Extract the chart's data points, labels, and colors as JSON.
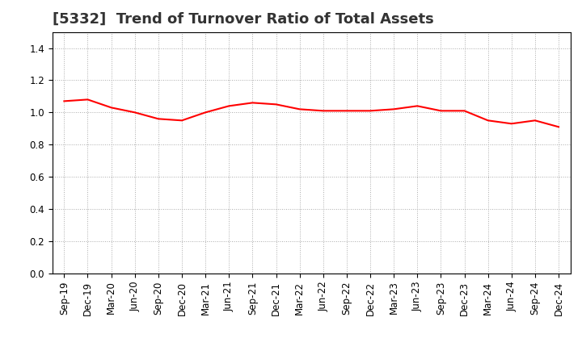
{
  "title": "[5332]  Trend of Turnover Ratio of Total Assets",
  "x_labels": [
    "Sep-19",
    "Dec-19",
    "Mar-20",
    "Jun-20",
    "Sep-20",
    "Dec-20",
    "Mar-21",
    "Jun-21",
    "Sep-21",
    "Dec-21",
    "Mar-22",
    "Jun-22",
    "Sep-22",
    "Dec-22",
    "Mar-23",
    "Jun-23",
    "Sep-23",
    "Dec-23",
    "Mar-24",
    "Jun-24",
    "Sep-24",
    "Dec-24"
  ],
  "values": [
    1.07,
    1.08,
    1.03,
    1.0,
    0.96,
    0.95,
    1.0,
    1.04,
    1.06,
    1.05,
    1.02,
    1.01,
    1.01,
    1.01,
    1.02,
    1.04,
    1.01,
    1.01,
    0.95,
    0.93,
    0.95,
    0.91
  ],
  "line_color": "#FF0000",
  "line_width": 1.5,
  "ylim": [
    0.0,
    1.5
  ],
  "yticks": [
    0.0,
    0.2,
    0.4,
    0.6,
    0.8,
    1.0,
    1.2,
    1.4
  ],
  "background_color": "#ffffff",
  "grid_color": "#aaaaaa",
  "title_fontsize": 13,
  "title_color": "#333333",
  "tick_fontsize": 8.5,
  "spine_color": "#000000"
}
